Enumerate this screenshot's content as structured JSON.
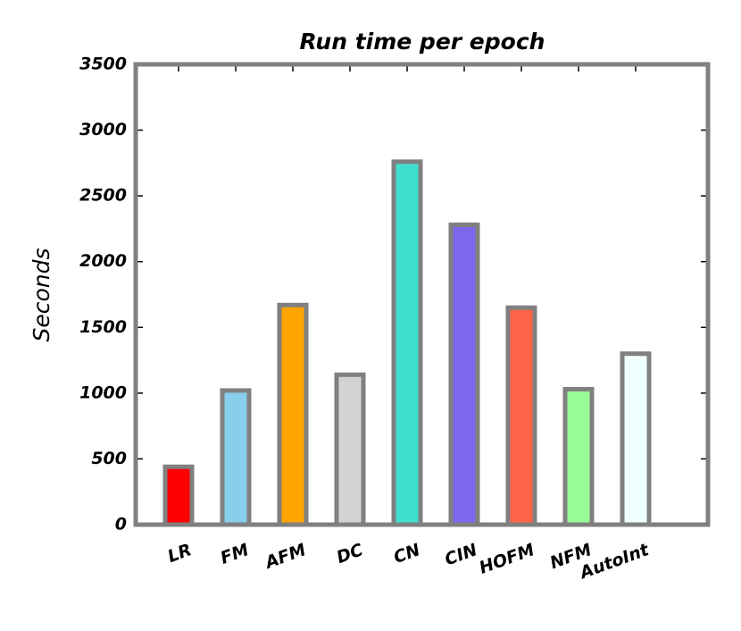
{
  "chart_data": {
    "type": "bar",
    "title": "Run time per epoch",
    "y_label": "Seconds",
    "categories": [
      "LR",
      "FM",
      "AFM",
      "DC",
      "CN",
      "CIN",
      "HOFM",
      "NFM",
      "AutoInt"
    ],
    "values": [
      440,
      1020,
      1670,
      1140,
      2760,
      2280,
      1650,
      1030,
      1300
    ],
    "colors": [
      "#ff0000",
      "#87ceeb",
      "#ffa500",
      "#d3d3d3",
      "#40e0d0",
      "#7b68ee",
      "#ff6347",
      "#98fb98",
      "#f0ffff"
    ],
    "edge_color": "#808080",
    "ylim": [
      0,
      3500
    ],
    "yticks": [
      0,
      500,
      1000,
      1500,
      2000,
      2500,
      3000,
      3500
    ],
    "grid": false
  }
}
